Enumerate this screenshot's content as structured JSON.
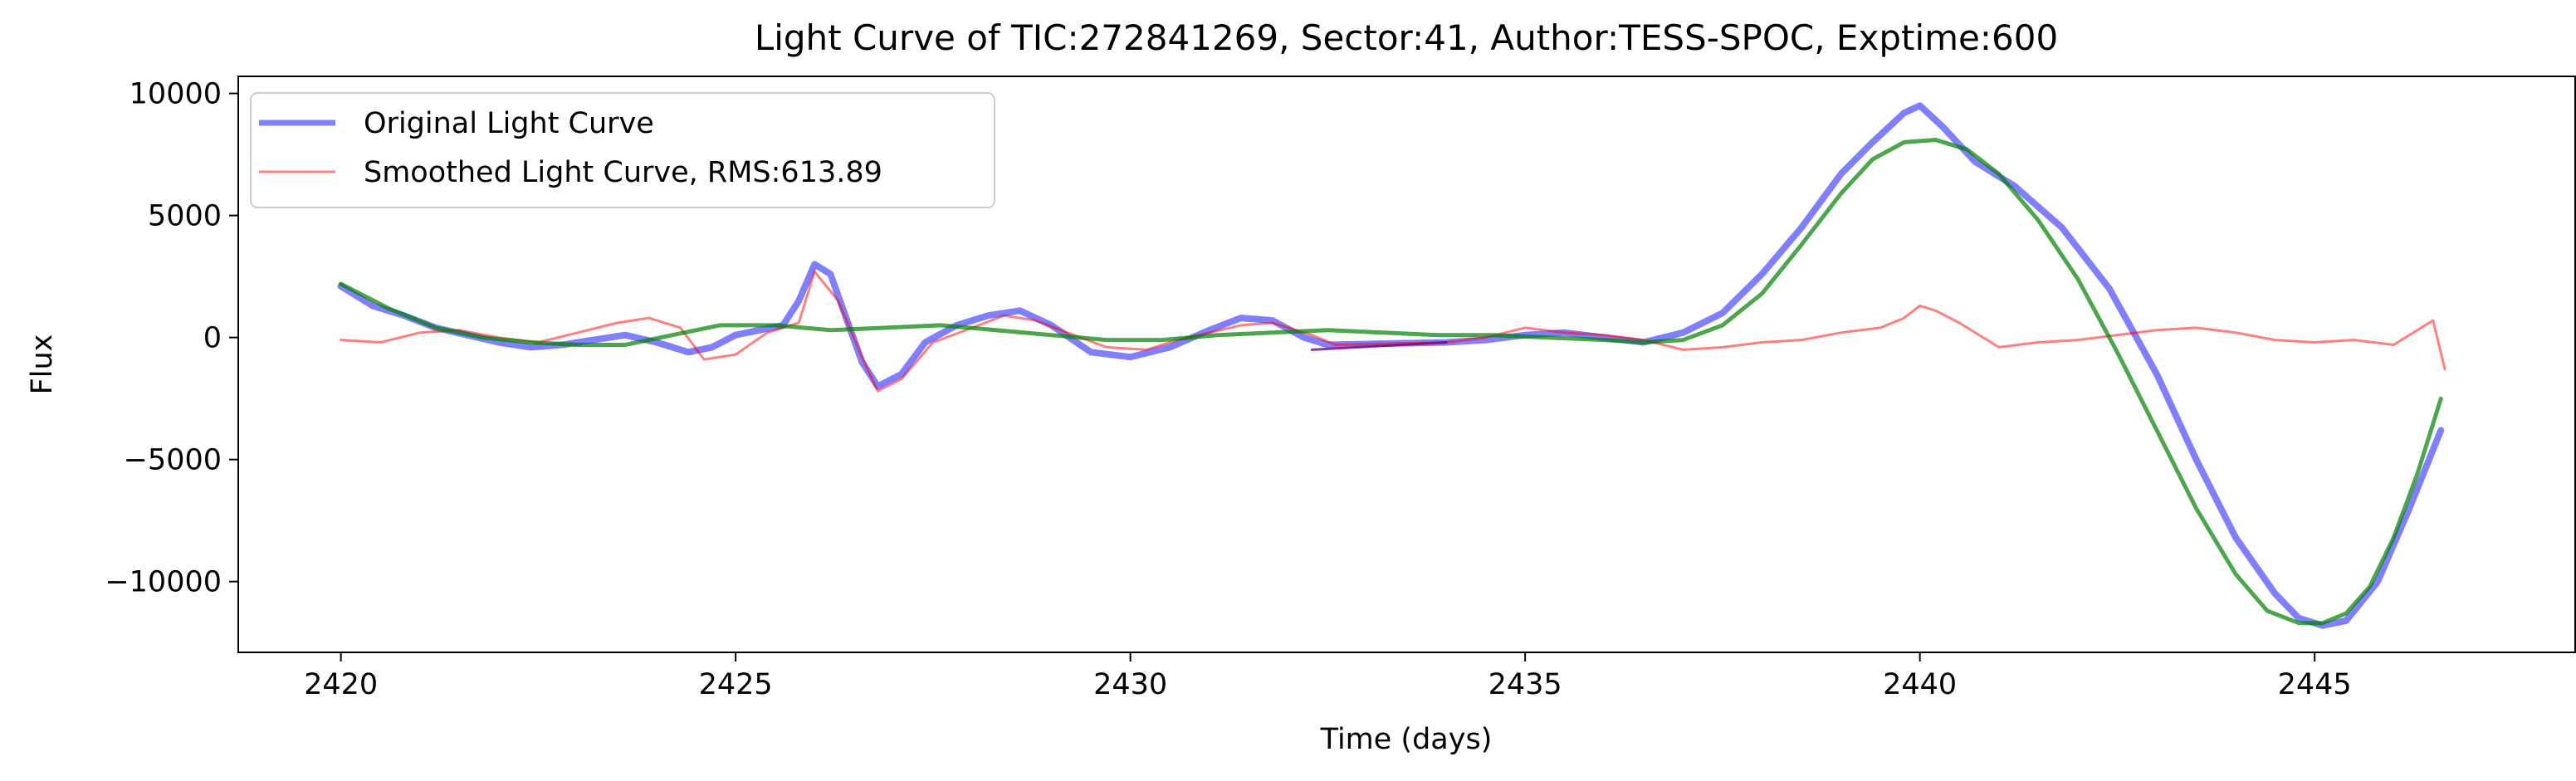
{
  "chart_data": {
    "type": "line",
    "title": "Light Curve of TIC:272841269, Sector:41, Author:TESS-SPOC, Exptime:600",
    "xlabel": "Time (days)",
    "ylabel": "Flux",
    "xlim": [
      2418.7,
      2448.3
    ],
    "ylim": [
      -12900,
      10700
    ],
    "grid": false,
    "legend_position": "top-left",
    "x_ticks": [
      2420,
      2425,
      2430,
      2435,
      2440,
      2445
    ],
    "x_tick_labels": [
      "2420",
      "2425",
      "2430",
      "2435",
      "2440",
      "2445"
    ],
    "y_ticks": [
      10000,
      5000,
      0,
      -5000,
      -10000
    ],
    "y_tick_labels": [
      "10000",
      "5000",
      "0",
      "−5000",
      "−10000"
    ],
    "series": [
      {
        "name": "Original Light Curve",
        "color": "#0000ff",
        "x": [
          2420.0,
          2420.4,
          2420.8,
          2421.2,
          2421.6,
          2422.0,
          2422.4,
          2422.8,
          2423.2,
          2423.6,
          2424.0,
          2424.4,
          2424.7,
          2425.0,
          2425.3,
          2425.6,
          2425.8,
          2426.0,
          2426.2,
          2426.4,
          2426.6,
          2426.8,
          2427.1,
          2427.4,
          2427.8,
          2428.2,
          2428.6,
          2429.0,
          2429.5,
          2430.0,
          2430.5,
          2431.0,
          2431.4,
          2431.8,
          2432.2,
          2432.5,
          2434.0,
          2434.5,
          2435.0,
          2435.5,
          2436.0,
          2436.5,
          2437.0,
          2437.5,
          2438.0,
          2438.5,
          2439.0,
          2439.4,
          2439.8,
          2440.0,
          2440.3,
          2440.7,
          2441.2,
          2441.8,
          2442.4,
          2443.0,
          2443.5,
          2444.0,
          2444.5,
          2444.8,
          2445.1,
          2445.4,
          2445.8,
          2446.2,
          2446.6
        ],
        "y": [
          2100,
          1300,
          900,
          400,
          100,
          -200,
          -400,
          -300,
          -100,
          100,
          -200,
          -600,
          -400,
          100,
          300,
          500,
          1500,
          3000,
          2600,
          800,
          -1000,
          -2000,
          -1500,
          -200,
          500,
          900,
          1100,
          500,
          -600,
          -800,
          -400,
          300,
          800,
          700,
          0,
          -300,
          -200,
          -100,
          100,
          200,
          0,
          -200,
          200,
          1000,
          2600,
          4500,
          6700,
          8000,
          9200,
          9500,
          8600,
          7200,
          6200,
          4500,
          2000,
          -1500,
          -5000,
          -8200,
          -10500,
          -11500,
          -11800,
          -11600,
          -10000,
          -7000,
          -3800
        ]
      },
      {
        "name": "Smoothed Light Curve, RMS:613.89",
        "color": "#ff0000",
        "x": [
          2420.0,
          2420.5,
          2421.0,
          2421.5,
          2422.0,
          2422.5,
          2423.0,
          2423.5,
          2423.9,
          2424.3,
          2424.6,
          2425.0,
          2425.4,
          2425.8,
          2426.0,
          2426.3,
          2426.6,
          2426.8,
          2427.1,
          2427.5,
          2428.0,
          2428.4,
          2428.8,
          2429.2,
          2429.7,
          2430.2,
          2430.6,
          2431.0,
          2431.4,
          2431.8,
          2432.3,
          2432.6,
          2434.0,
          2434.5,
          2435.0,
          2435.5,
          2436.0,
          2436.5,
          2437.0,
          2437.5,
          2438.0,
          2438.5,
          2439.0,
          2439.5,
          2439.8,
          2440.0,
          2440.2,
          2440.5,
          2441.0,
          2441.5,
          2442.0,
          2442.5,
          2443.0,
          2443.5,
          2444.0,
          2444.5,
          2445.0,
          2445.5,
          2446.0,
          2446.3,
          2446.5,
          2446.65
        ],
        "y": [
          -100,
          -200,
          200,
          300,
          0,
          -200,
          200,
          600,
          800,
          400,
          -900,
          -700,
          200,
          600,
          2700,
          1500,
          -800,
          -2200,
          -1700,
          -200,
          400,
          900,
          700,
          200,
          -400,
          -500,
          -100,
          200,
          500,
          600,
          100,
          -300,
          -200,
          0,
          400,
          200,
          100,
          -100,
          -500,
          -400,
          -200,
          -100,
          200,
          400,
          800,
          1300,
          1100,
          600,
          -400,
          -200,
          -100,
          100,
          300,
          400,
          200,
          -100,
          -200,
          -100,
          -300,
          300,
          700,
          -1300
        ]
      },
      {
        "name": "",
        "color": "#008000",
        "x": [
          2420.0,
          2420.6,
          2421.2,
          2421.8,
          2422.4,
          2423.0,
          2423.6,
          2424.2,
          2424.8,
          2425.5,
          2426.2,
          2426.9,
          2427.6,
          2428.3,
          2429.0,
          2429.7,
          2430.4,
          2431.1,
          2431.8,
          2432.5,
          2433.2,
          2433.9,
          2434.6,
          2435.3,
          2436.0,
          2436.5,
          2437.0,
          2437.5,
          2438.0,
          2438.5,
          2439.0,
          2439.4,
          2439.8,
          2440.2,
          2440.6,
          2441.0,
          2441.5,
          2442.0,
          2442.5,
          2443.0,
          2443.5,
          2444.0,
          2444.4,
          2444.8,
          2445.1,
          2445.4,
          2445.7,
          2446.0,
          2446.3,
          2446.6
        ],
        "y": [
          2200,
          1200,
          400,
          0,
          -200,
          -300,
          -300,
          100,
          500,
          500,
          300,
          400,
          500,
          300,
          100,
          -100,
          -100,
          100,
          200,
          300,
          200,
          100,
          100,
          0,
          -100,
          -200,
          -100,
          500,
          1800,
          3800,
          5900,
          7300,
          8000,
          8100,
          7700,
          6700,
          4800,
          2400,
          -600,
          -3800,
          -7000,
          -9700,
          -11200,
          -11700,
          -11700,
          -11300,
          -10200,
          -8200,
          -5600,
          -2500
        ]
      },
      {
        "name": "",
        "color": "#800080",
        "x": [
          2432.3,
          2434.0
        ],
        "y": [
          -500,
          -200
        ]
      }
    ]
  }
}
